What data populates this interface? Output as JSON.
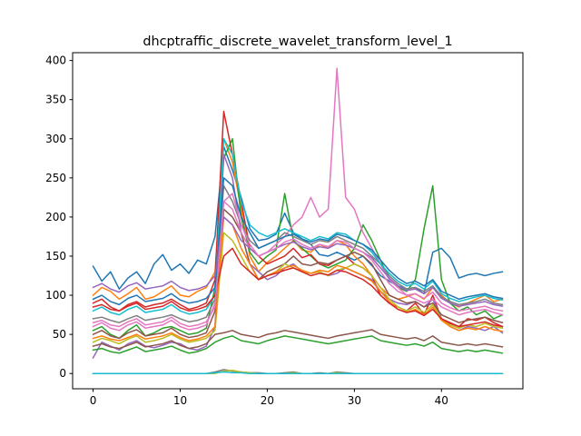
{
  "chart_data": {
    "type": "line",
    "title": "dhcptraffic_discrete_wavelet_transform_level_1",
    "xlabel": "",
    "ylabel": "",
    "xlim": [
      -2.35,
      49.35
    ],
    "ylim": [
      -19.5,
      410
    ],
    "xticks": [
      0,
      10,
      20,
      30,
      40
    ],
    "yticks": [
      0,
      50,
      100,
      150,
      200,
      250,
      300,
      350,
      400
    ],
    "grid": false,
    "legend": "none",
    "colors": [
      "#1f77b4",
      "#ff7f0e",
      "#2ca02c",
      "#d62728",
      "#9467bd",
      "#8c564b",
      "#e377c2",
      "#7f7f7f",
      "#bcbd22",
      "#17becf"
    ],
    "series": [
      {
        "values": [
          137,
          118,
          130,
          108,
          122,
          130,
          115,
          140,
          152,
          132,
          140,
          128,
          145,
          140,
          175,
          290,
          260,
          225,
          185,
          170,
          172,
          178,
          205,
          180,
          172,
          165,
          152,
          150,
          155,
          150,
          145,
          150,
          138,
          125,
          118,
          112,
          108,
          110,
          102,
          155,
          160,
          148,
          122,
          126,
          128,
          125,
          128,
          130
        ]
      },
      {
        "values": [
          100,
          110,
          105,
          95,
          102,
          110,
          95,
          98,
          105,
          112,
          100,
          98,
          105,
          110,
          130,
          300,
          270,
          210,
          150,
          130,
          142,
          150,
          160,
          170,
          158,
          155,
          165,
          160,
          170,
          165,
          150,
          140,
          125,
          110,
          100,
          95,
          98,
          102,
          95,
          110,
          100,
          90,
          85,
          90,
          95,
          100,
          92,
          95
        ]
      },
      {
        "values": [
          55,
          60,
          50,
          45,
          55,
          62,
          48,
          52,
          58,
          60,
          55,
          50,
          52,
          58,
          110,
          275,
          300,
          200,
          155,
          140,
          150,
          158,
          230,
          170,
          160,
          150,
          140,
          135,
          140,
          145,
          160,
          190,
          170,
          145,
          120,
          110,
          105,
          120,
          185,
          240,
          120,
          90,
          80,
          85,
          75,
          80,
          70,
          75
        ]
      },
      {
        "values": [
          90,
          95,
          85,
          80,
          88,
          92,
          85,
          88,
          90,
          95,
          88,
          82,
          85,
          90,
          120,
          335,
          280,
          220,
          160,
          150,
          140,
          145,
          150,
          160,
          148,
          152,
          140,
          138,
          145,
          150,
          140,
          135,
          125,
          100,
          90,
          85,
          80,
          90,
          75,
          100,
          70,
          65,
          60,
          70,
          68,
          72,
          65,
          60
        ]
      },
      {
        "values": [
          20,
          40,
          35,
          30,
          38,
          42,
          35,
          33,
          36,
          40,
          38,
          32,
          30,
          35,
          60,
          280,
          250,
          180,
          140,
          130,
          120,
          125,
          135,
          140,
          130,
          128,
          130,
          125,
          128,
          135,
          130,
          125,
          120,
          105,
          95,
          90,
          88,
          92,
          85,
          95,
          70,
          60,
          55,
          60,
          58,
          55,
          60,
          52
        ]
      },
      {
        "values": [
          50,
          55,
          48,
          45,
          52,
          56,
          48,
          50,
          52,
          58,
          50,
          46,
          48,
          52,
          80,
          210,
          200,
          180,
          140,
          120,
          130,
          135,
          140,
          150,
          140,
          138,
          142,
          140,
          145,
          150,
          155,
          150,
          140,
          120,
          100,
          95,
          90,
          92,
          85,
          90,
          75,
          70,
          65,
          68,
          70,
          72,
          68,
          65
        ]
      },
      {
        "values": [
          60,
          65,
          58,
          55,
          62,
          66,
          58,
          60,
          62,
          68,
          60,
          56,
          58,
          62,
          90,
          220,
          210,
          180,
          160,
          150,
          155,
          165,
          175,
          190,
          200,
          225,
          200,
          210,
          390,
          225,
          210,
          180,
          160,
          140,
          120,
          110,
          100,
          95,
          90,
          95,
          85,
          80,
          75,
          78,
          80,
          82,
          78,
          75
        ]
      },
      {
        "values": [
          70,
          72,
          68,
          65,
          70,
          74,
          68,
          70,
          72,
          75,
          70,
          66,
          68,
          72,
          95,
          240,
          220,
          190,
          170,
          160,
          165,
          170,
          180,
          175,
          170,
          165,
          170,
          168,
          175,
          170,
          165,
          160,
          150,
          140,
          125,
          115,
          108,
          110,
          105,
          112,
          98,
          92,
          88,
          90,
          92,
          95,
          90,
          88
        ]
      },
      {
        "values": [
          40,
          45,
          42,
          38,
          44,
          48,
          40,
          42,
          45,
          50,
          44,
          40,
          42,
          45,
          55,
          180,
          170,
          150,
          130,
          120,
          125,
          130,
          140,
          135,
          130,
          128,
          130,
          125,
          132,
          135,
          140,
          135,
          125,
          110,
          95,
          85,
          80,
          85,
          78,
          88,
          70,
          62,
          58,
          62,
          60,
          64,
          60,
          58
        ]
      },
      {
        "values": [
          80,
          85,
          78,
          75,
          82,
          86,
          78,
          80,
          82,
          88,
          80,
          76,
          78,
          82,
          100,
          300,
          280,
          220,
          190,
          180,
          175,
          180,
          185,
          180,
          175,
          170,
          175,
          172,
          180,
          178,
          170,
          165,
          155,
          140,
          128,
          118,
          112,
          115,
          108,
          118,
          102,
          96,
          92,
          95,
          98,
          100,
          96,
          94
        ]
      },
      {
        "values": [
          95,
          100,
          92,
          88,
          96,
          100,
          92,
          94,
          96,
          102,
          94,
          90,
          92,
          96,
          110,
          250,
          240,
          200,
          180,
          160,
          165,
          170,
          175,
          178,
          172,
          168,
          172,
          170,
          178,
          175,
          170,
          165,
          158,
          145,
          132,
          122,
          115,
          118,
          112,
          120,
          105,
          100,
          95,
          98,
          100,
          102,
          98,
          96
        ]
      },
      {
        "values": [
          45,
          48,
          44,
          42,
          46,
          50,
          44,
          46,
          48,
          52,
          46,
          42,
          44,
          48,
          60,
          200,
          190,
          160,
          140,
          120,
          125,
          130,
          135,
          138,
          132,
          128,
          132,
          130,
          138,
          135,
          130,
          125,
          118,
          105,
          92,
          82,
          78,
          82,
          75,
          85,
          68,
          60,
          55,
          58,
          56,
          60,
          56,
          54
        ]
      },
      {
        "values": [
          30,
          32,
          28,
          26,
          30,
          34,
          28,
          30,
          32,
          35,
          30,
          26,
          28,
          32,
          40,
          45,
          48,
          42,
          40,
          38,
          42,
          45,
          48,
          46,
          44,
          42,
          40,
          38,
          40,
          42,
          44,
          46,
          48,
          42,
          40,
          38,
          36,
          38,
          35,
          40,
          32,
          30,
          28,
          30,
          28,
          30,
          28,
          26
        ]
      },
      {
        "values": [
          85,
          88,
          82,
          80,
          86,
          90,
          82,
          84,
          86,
          92,
          84,
          80,
          82,
          86,
          100,
          150,
          160,
          140,
          130,
          120,
          125,
          128,
          132,
          135,
          130,
          125,
          128,
          126,
          132,
          130,
          125,
          120,
          112,
          100,
          90,
          82,
          78,
          80,
          74,
          82,
          70,
          64,
          60,
          62,
          64,
          66,
          62,
          60
        ]
      },
      {
        "values": [
          110,
          115,
          108,
          104,
          112,
          116,
          108,
          110,
          112,
          118,
          110,
          106,
          108,
          112,
          125,
          200,
          190,
          170,
          160,
          150,
          155,
          160,
          165,
          168,
          162,
          158,
          162,
          160,
          166,
          164,
          160,
          155,
          148,
          135,
          122,
          112,
          106,
          108,
          102,
          110,
          96,
          90,
          86,
          88,
          90,
          92,
          88,
          86
        ]
      },
      {
        "values": [
          35,
          38,
          34,
          32,
          36,
          40,
          34,
          36,
          38,
          42,
          36,
          32,
          34,
          38,
          50,
          52,
          55,
          50,
          48,
          46,
          50,
          52,
          55,
          53,
          51,
          49,
          47,
          45,
          48,
          50,
          52,
          54,
          56,
          50,
          48,
          46,
          44,
          46,
          42,
          48,
          40,
          38,
          36,
          38,
          36,
          38,
          36,
          34
        ]
      },
      {
        "values": [
          65,
          68,
          62,
          60,
          66,
          70,
          62,
          64,
          66,
          72,
          64,
          60,
          62,
          66,
          85,
          220,
          230,
          190,
          165,
          150,
          155,
          160,
          168,
          172,
          165,
          160,
          165,
          162,
          170,
          168,
          160,
          155,
          145,
          130,
          115,
          105,
          100,
          102,
          96,
          104,
          90,
          84,
          80,
          82,
          84,
          86,
          82,
          80
        ]
      },
      {
        "values": [
          0,
          0,
          0,
          0,
          0,
          0,
          0,
          0,
          0,
          0,
          0,
          0,
          0,
          0,
          2,
          5,
          3,
          2,
          1,
          1,
          0,
          0,
          1,
          2,
          0,
          0,
          1,
          0,
          2,
          1,
          0,
          0,
          0,
          0,
          0,
          0,
          0,
          0,
          0,
          0,
          0,
          0,
          0,
          0,
          0,
          0,
          0,
          0
        ]
      },
      {
        "values": [
          0,
          0,
          0,
          0,
          0,
          0,
          0,
          0,
          0,
          0,
          0,
          0,
          0,
          0,
          0,
          3,
          4,
          2,
          1,
          0,
          0,
          0,
          0,
          1,
          0,
          0,
          0,
          0,
          1,
          0,
          0,
          0,
          0,
          0,
          0,
          0,
          0,
          0,
          0,
          0,
          0,
          0,
          0,
          0,
          0,
          0,
          0,
          0
        ]
      },
      {
        "values": [
          0,
          0,
          0,
          0,
          0,
          0,
          0,
          0,
          0,
          0,
          0,
          0,
          0,
          0,
          1,
          2,
          1,
          1,
          0,
          0,
          0,
          0,
          0,
          0,
          0,
          0,
          0,
          0,
          0,
          0,
          0,
          0,
          0,
          0,
          0,
          0,
          0,
          0,
          0,
          0,
          0,
          0,
          0,
          0,
          0,
          0,
          0,
          0
        ]
      }
    ]
  }
}
